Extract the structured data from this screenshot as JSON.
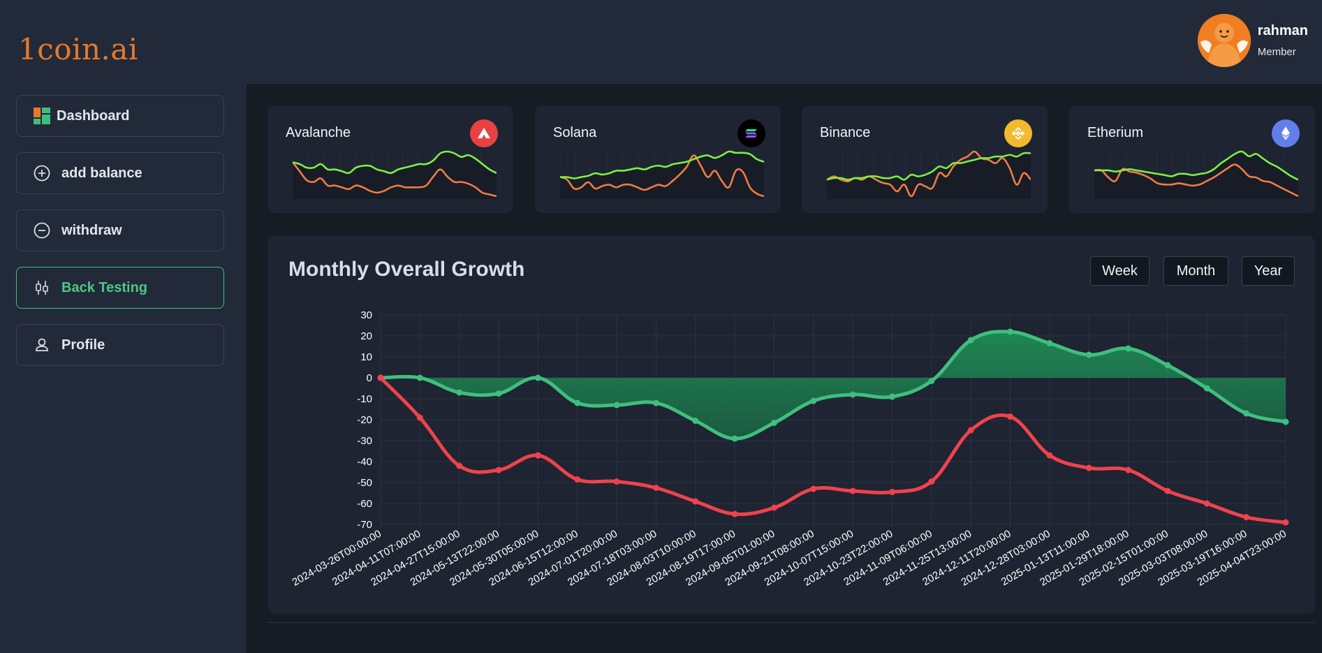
{
  "brand": {
    "logo": "1coin.ai"
  },
  "user": {
    "name": "rahman",
    "role": "Member"
  },
  "nav": {
    "items": [
      {
        "label": "Dashboard",
        "icon": "dashboard-icon"
      },
      {
        "label": "add balance",
        "icon": "plus-circle-icon"
      },
      {
        "label": "withdraw",
        "icon": "minus-circle-icon"
      },
      {
        "label": "Back Testing",
        "icon": "candlestick-icon",
        "active": true
      },
      {
        "label": "Profile",
        "icon": "user-icon"
      }
    ]
  },
  "coins": [
    {
      "name": "Avalanche",
      "icon": "avalanche-icon",
      "icon_color": "#e84142",
      "green": [
        8,
        7,
        5,
        5,
        7,
        4,
        4,
        3,
        2,
        5,
        6,
        6,
        4,
        3,
        2,
        4,
        5,
        6,
        7,
        7,
        9,
        13,
        14,
        13,
        11,
        12,
        10,
        7,
        4,
        2
      ],
      "red": [
        8,
        3,
        -2,
        -3,
        -1,
        -5,
        -5,
        -6,
        -7,
        -5,
        -6,
        -8,
        -9,
        -8,
        -6,
        -5,
        -6,
        -6,
        -6,
        -5,
        0,
        4,
        0,
        -3,
        -3,
        -4,
        -6,
        -9,
        -10,
        -11
      ]
    },
    {
      "name": "Solana",
      "icon": "solana-icon",
      "icon_color": "#000000",
      "green": [
        3,
        3,
        2,
        3,
        4,
        6,
        5,
        6,
        8,
        8,
        9,
        10,
        9,
        11,
        12,
        11,
        13,
        14,
        15,
        17,
        19,
        20,
        18,
        20,
        23,
        22,
        22,
        21,
        17,
        15
      ],
      "red": [
        3,
        1,
        -6,
        -5,
        -1,
        -6,
        -4,
        -3,
        -5,
        -3,
        -3,
        -5,
        -7,
        -5,
        -3,
        -4,
        0,
        5,
        11,
        20,
        12,
        3,
        8,
        0,
        -5,
        8,
        7,
        -5,
        -10,
        -12
      ]
    },
    {
      "name": "Binance",
      "icon": "binance-icon",
      "icon_color": "#f3ba2f",
      "green": [
        0,
        1,
        1,
        0,
        1,
        1,
        2,
        2,
        1,
        1,
        2,
        0,
        3,
        2,
        3,
        5,
        8,
        7,
        10,
        10,
        11,
        12,
        13,
        13,
        14,
        14,
        15,
        14,
        16,
        16
      ],
      "red": [
        0,
        2,
        0,
        -1,
        1,
        0,
        2,
        0,
        -2,
        -3,
        -7,
        -3,
        -10,
        -3,
        -4,
        -5,
        4,
        2,
        8,
        12,
        14,
        17,
        13,
        12,
        10,
        13,
        7,
        -3,
        4,
        0
      ]
    },
    {
      "name": "Etherium",
      "icon": "ethereum-icon",
      "icon_color": "#627eea",
      "green": [
        3,
        3,
        3,
        2,
        3,
        4,
        3,
        2,
        1,
        0,
        -1,
        -2,
        0,
        0,
        -1,
        0,
        1,
        4,
        9,
        13,
        17,
        19,
        15,
        17,
        13,
        9,
        6,
        2,
        -2,
        -5
      ],
      "red": [
        3,
        3,
        -3,
        -6,
        4,
        2,
        1,
        -1,
        -4,
        -8,
        -9,
        -9,
        -8,
        -9,
        -10,
        -9,
        -6,
        -3,
        1,
        5,
        8,
        4,
        -2,
        -3,
        -6,
        -7,
        -10,
        -13,
        -16,
        -19
      ]
    }
  ],
  "growth": {
    "title": "Monthly Overall Growth",
    "buttons": [
      "Week",
      "Month",
      "Year"
    ]
  },
  "chart_data": {
    "type": "line",
    "title": "Monthly Overall Growth",
    "ylim": [
      -70,
      30
    ],
    "yticks": [
      30,
      20,
      10,
      0,
      -10,
      -20,
      -30,
      -40,
      -50,
      -60,
      -70
    ],
    "categories": [
      "2024-03-26T00:00:00",
      "2024-04-11T07:00:00",
      "2024-04-27T15:00:00",
      "2024-05-13T22:00:00",
      "2024-05-30T05:00:00",
      "2024-06-15T12:00:00",
      "2024-07-01T20:00:00",
      "2024-07-18T03:00:00",
      "2024-08-03T10:00:00",
      "2024-08-19T17:00:00",
      "2024-09-05T01:00:00",
      "2024-09-21T08:00:00",
      "2024-10-07T15:00:00",
      "2024-10-23T22:00:00",
      "2024-11-09T06:00:00",
      "2024-11-25T13:00:00",
      "2024-12-11T20:00:00",
      "2024-12-28T03:00:00",
      "2025-01-13T11:00:00",
      "2025-01-29T18:00:00",
      "2025-02-15T01:00:00",
      "2025-03-03T08:00:00",
      "2025-03-19T16:00:00",
      "2025-04-04T23:00:00"
    ],
    "series": [
      {
        "name": "green",
        "color": "#3fbf7f",
        "values": [
          0,
          0,
          -7,
          -7.5,
          0,
          -12,
          -13,
          -12,
          -20.5,
          -29,
          -21.5,
          -11,
          -8,
          -9,
          -1.5,
          18,
          22,
          16.5,
          11,
          14,
          6,
          -5,
          -17,
          -21
        ]
      },
      {
        "name": "red",
        "color": "#f0424d",
        "values": [
          0,
          -19,
          -42,
          -44,
          -37,
          -48.5,
          -49.5,
          -52.5,
          -59,
          -65,
          -62,
          -53,
          -54,
          -54.5,
          -49.5,
          -25,
          -18.5,
          -37,
          -43,
          -44,
          -54,
          -60,
          -66.5,
          -69
        ]
      }
    ],
    "grid": true,
    "legend": "none"
  }
}
